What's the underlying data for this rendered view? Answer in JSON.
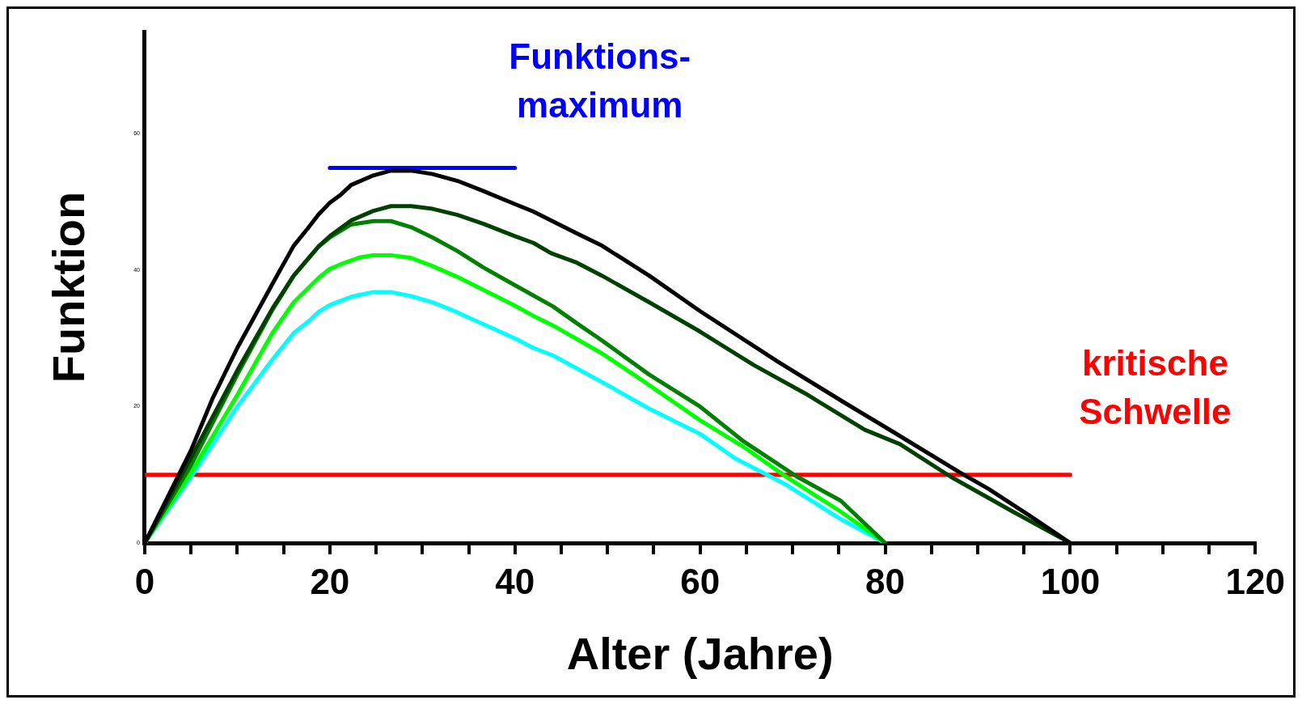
{
  "chart_data": {
    "type": "line",
    "xlabel": "Alter (Jahre)",
    "ylabel": "Funktion",
    "xlim": [
      0,
      120
    ],
    "ylim": [
      0,
      75
    ],
    "xticks": [
      0,
      {
        "value": 5,
        "label": null
      },
      {
        "value": 10,
        "label": null
      },
      {
        "value": 15,
        "label": null
      },
      20,
      {
        "value": 25,
        "label": null
      },
      {
        "value": 30,
        "label": null
      },
      {
        "value": 35,
        "label": null
      },
      40,
      {
        "value": 45,
        "label": null
      },
      {
        "value": 50,
        "label": null
      },
      {
        "value": 55,
        "label": null
      },
      60,
      {
        "value": 65,
        "label": null
      },
      {
        "value": 70,
        "label": null
      },
      {
        "value": 75,
        "label": null
      },
      80,
      {
        "value": 85,
        "label": null
      },
      {
        "value": 90,
        "label": null
      },
      {
        "value": 95,
        "label": null
      },
      100,
      {
        "value": 105,
        "label": null
      },
      {
        "value": 110,
        "label": null
      },
      {
        "value": 115,
        "label": null
      },
      120
    ],
    "yticks": [
      0,
      20,
      40,
      60
    ],
    "marker": "none",
    "line_style": "solid",
    "series": [
      {
        "color": "#000000",
        "x": [
          0,
          5,
          7.3,
          10,
          13.8,
          16.1,
          17.6,
          18.8,
          20,
          21.2,
          22.3,
          24.7,
          26.6,
          28.8,
          31.1,
          33.8,
          36.6,
          40,
          42,
          46.7,
          49.4,
          54.5,
          60,
          68.5,
          75.7,
          80,
          88,
          91.2,
          95.5,
          100
        ],
        "values": [
          0,
          13.6,
          21.1,
          28.6,
          38,
          43.6,
          46.1,
          48.2,
          49.9,
          51.1,
          52.5,
          53.9,
          54.6,
          54.6,
          54.1,
          53.1,
          51.6,
          49.7,
          48.6,
          45.4,
          43.6,
          39.2,
          34,
          26.5,
          20.5,
          17,
          10.4,
          7.9,
          4.1,
          0
        ]
      },
      {
        "color": "#004000",
        "x": [
          0,
          5,
          10,
          13.8,
          16.1,
          18.8,
          20,
          22.3,
          24.7,
          26.6,
          28.8,
          31.1,
          33.8,
          36.6,
          40,
          42,
          43.9,
          46.7,
          49.4,
          54.5,
          60,
          65.8,
          71.4,
          77.8,
          81.6,
          87.1,
          93.8,
          100
        ],
        "values": [
          0,
          12.5,
          25.3,
          34.4,
          39.2,
          43.5,
          45,
          47.3,
          48.7,
          49.4,
          49.4,
          49,
          48.1,
          46.8,
          45,
          44,
          42.5,
          41.1,
          39.2,
          35.3,
          31,
          26.1,
          21.9,
          16.6,
          14.5,
          9.7,
          4.6,
          0
        ]
      },
      {
        "color": "#008000",
        "x": [
          0,
          5,
          10,
          13.8,
          16.1,
          18.8,
          20,
          22.3,
          24.7,
          26.6,
          28.8,
          31.1,
          33.8,
          36.6,
          40,
          44.1,
          46.7,
          49.4,
          54.5,
          60,
          64.7,
          70.5,
          75.2,
          80
        ],
        "values": [
          0,
          11.4,
          24.7,
          34.2,
          39.2,
          43.5,
          44.8,
          46.7,
          47.2,
          47.2,
          46.3,
          44.8,
          42.8,
          40.4,
          37.8,
          34.7,
          32.2,
          29.7,
          24.7,
          20,
          14.9,
          9.7,
          6.2,
          0
        ]
      },
      {
        "color": "#00ff00",
        "x": [
          0,
          5,
          10,
          13.8,
          16.1,
          18.8,
          20,
          21.4,
          23.3,
          24.7,
          26.6,
          28.8,
          31.1,
          33.8,
          40,
          42,
          44.1,
          49.4,
          53.7,
          60,
          64.7,
          69.1,
          75.2,
          80
        ],
        "values": [
          0,
          10.3,
          21.7,
          30.8,
          35.3,
          38.9,
          40.2,
          41,
          41.9,
          42.2,
          42.2,
          41.8,
          40.6,
          39,
          34.8,
          33.3,
          31.9,
          27.8,
          23.9,
          18,
          14.1,
          9.9,
          4.6,
          0
        ]
      },
      {
        "color": "#00ffff",
        "x": [
          0,
          5,
          7.3,
          10,
          13.8,
          16.1,
          17.6,
          18.8,
          20,
          22.3,
          24.7,
          26.6,
          28.8,
          31.1,
          33.8,
          40,
          42,
          44.1,
          49.4,
          54.5,
          60,
          63.8,
          69.1,
          75.2,
          80
        ],
        "values": [
          0,
          9.7,
          14.4,
          20,
          26.9,
          30.8,
          32.4,
          33.9,
          34.9,
          36.1,
          36.8,
          36.8,
          36.2,
          35.3,
          33.8,
          30,
          28.6,
          27.5,
          23.6,
          19.7,
          16,
          12.4,
          8.7,
          3.5,
          0
        ]
      },
      {
        "name": "Funktions-\nmaximum",
        "color": "#0000ff",
        "x": [
          20,
          40
        ],
        "values": [
          55,
          55
        ]
      },
      {
        "name": "kritische\nSchwelle",
        "color": "#ff0000",
        "x": [
          0,
          100
        ],
        "values": [
          10,
          10
        ]
      }
    ]
  }
}
